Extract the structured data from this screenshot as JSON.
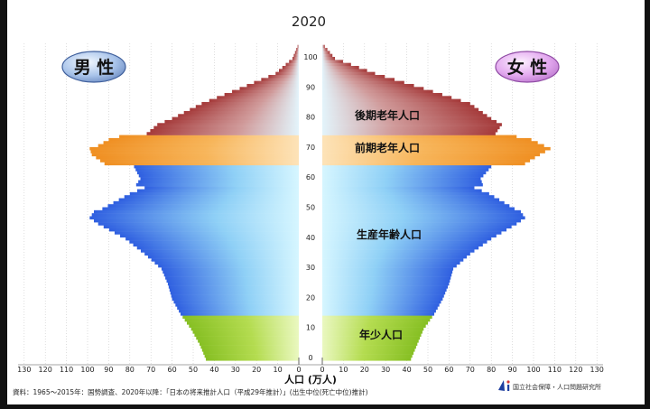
{
  "chart_data": {
    "type": "population-pyramid",
    "title": "2020",
    "xlabel": "人口 (万人)",
    "left_label": "男 性",
    "right_label": "女 性",
    "x_ticks": [
      130,
      120,
      110,
      100,
      90,
      80,
      70,
      60,
      50,
      40,
      30,
      20,
      10,
      0
    ],
    "age_ticks": [
      0,
      10,
      20,
      30,
      40,
      50,
      60,
      70,
      80,
      90,
      100
    ],
    "xlim": [
      0,
      130
    ],
    "ylim": [
      0,
      105
    ],
    "unit": "万人",
    "groups": [
      {
        "name": "年少人口",
        "age_from": 0,
        "age_to": 14,
        "color": "#9acd32"
      },
      {
        "name": "生産年齢人口",
        "age_from": 15,
        "age_to": 64,
        "color": "#3f6fe6"
      },
      {
        "name": "前期老年人口",
        "age_from": 65,
        "age_to": 74,
        "color": "#f0962a"
      },
      {
        "name": "後期老年人口",
        "age_from": 75,
        "age_to": 105,
        "color": "#b94a4a"
      }
    ],
    "male_keys": [
      [
        0,
        44
      ],
      [
        5,
        47
      ],
      [
        10,
        51
      ],
      [
        14,
        55
      ],
      [
        15,
        56
      ],
      [
        20,
        60
      ],
      [
        25,
        62
      ],
      [
        30,
        65
      ],
      [
        35,
        73
      ],
      [
        40,
        82
      ],
      [
        45,
        95
      ],
      [
        47,
        99
      ],
      [
        49,
        97
      ],
      [
        50,
        93
      ],
      [
        55,
        80
      ],
      [
        57,
        73
      ],
      [
        58,
        77
      ],
      [
        60,
        75
      ],
      [
        64,
        78
      ],
      [
        65,
        92
      ],
      [
        68,
        98
      ],
      [
        70,
        99
      ],
      [
        71,
        95
      ],
      [
        73,
        90
      ],
      [
        74,
        85
      ],
      [
        75,
        72
      ],
      [
        78,
        67
      ],
      [
        80,
        60
      ],
      [
        85,
        46
      ],
      [
        90,
        28
      ],
      [
        95,
        11
      ],
      [
        100,
        3
      ],
      [
        105,
        0
      ]
    ],
    "female_keys": [
      [
        0,
        42
      ],
      [
        5,
        45
      ],
      [
        10,
        48
      ],
      [
        14,
        52
      ],
      [
        15,
        53
      ],
      [
        20,
        57
      ],
      [
        25,
        60
      ],
      [
        30,
        62
      ],
      [
        35,
        70
      ],
      [
        40,
        80
      ],
      [
        45,
        92
      ],
      [
        47,
        96
      ],
      [
        49,
        94
      ],
      [
        50,
        91
      ],
      [
        55,
        79
      ],
      [
        57,
        72
      ],
      [
        58,
        76
      ],
      [
        60,
        75
      ],
      [
        64,
        80
      ],
      [
        65,
        96
      ],
      [
        68,
        103
      ],
      [
        70,
        108
      ],
      [
        71,
        105
      ],
      [
        73,
        99
      ],
      [
        74,
        92
      ],
      [
        75,
        82
      ],
      [
        78,
        85
      ],
      [
        80,
        80
      ],
      [
        85,
        70
      ],
      [
        90,
        48
      ],
      [
        95,
        25
      ],
      [
        100,
        6
      ],
      [
        105,
        0
      ]
    ],
    "source": "資料：1965～2015年：国勢調査、2020年以降：「日本の将来推計人口（平成29年推計）」(出生中位(死亡中位)推計)",
    "organization": "国立社会保障・人口問題研究所"
  }
}
